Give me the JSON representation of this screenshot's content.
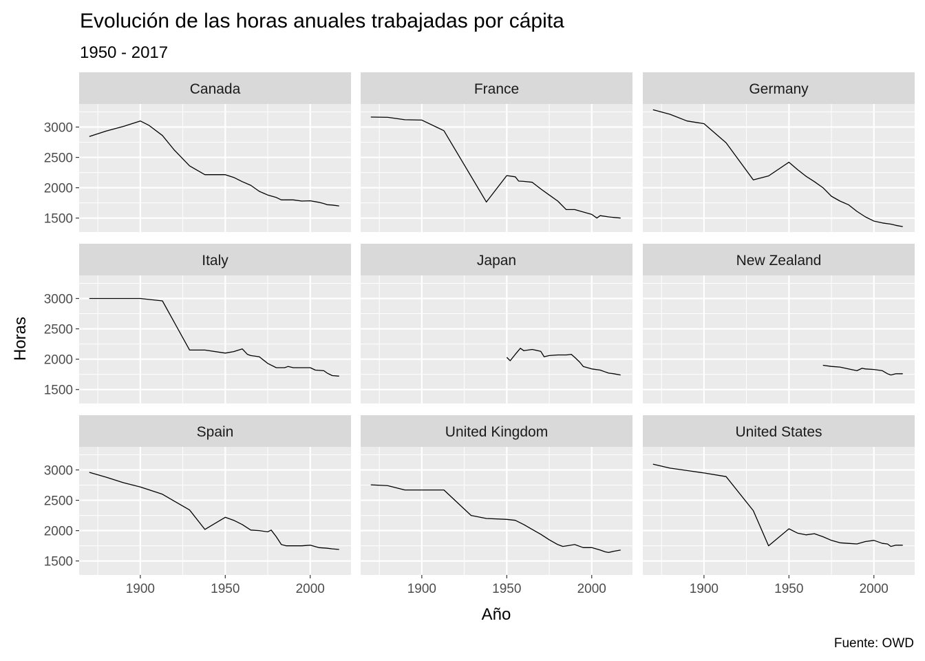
{
  "chart_data": {
    "type": "line",
    "title": "Evolución de las horas anuales trabajadas por cápita",
    "subtitle": "1950 - 2017",
    "xlabel": "Año",
    "ylabel": "Horas",
    "caption": "Fuente: OWD",
    "xlim": [
      1864,
      2024
    ],
    "ylim": [
      1270,
      3380
    ],
    "x_ticks": [
      1900,
      1950,
      2000
    ],
    "y_ticks": [
      1500,
      2000,
      2500,
      3000
    ],
    "grid": true,
    "legend": "none",
    "line_color": "#000000",
    "panel_color": "#ebebeb",
    "strip_color": "#d9d9d9",
    "grid_color": "#ffffff",
    "panels": [
      {
        "name": "Canada",
        "points": [
          [
            1870,
            2845
          ],
          [
            1880,
            2935
          ],
          [
            1890,
            3010
          ],
          [
            1900,
            3100
          ],
          [
            1905,
            3030
          ],
          [
            1913,
            2860
          ],
          [
            1920,
            2620
          ],
          [
            1929,
            2360
          ],
          [
            1938,
            2215
          ],
          [
            1950,
            2215
          ],
          [
            1955,
            2170
          ],
          [
            1960,
            2100
          ],
          [
            1965,
            2040
          ],
          [
            1970,
            1940
          ],
          [
            1975,
            1880
          ],
          [
            1980,
            1840
          ],
          [
            1983,
            1800
          ],
          [
            1990,
            1800
          ],
          [
            1995,
            1780
          ],
          [
            2000,
            1785
          ],
          [
            2005,
            1760
          ],
          [
            2008,
            1740
          ],
          [
            2010,
            1720
          ],
          [
            2013,
            1715
          ],
          [
            2017,
            1700
          ]
        ]
      },
      {
        "name": "France",
        "points": [
          [
            1870,
            3165
          ],
          [
            1880,
            3160
          ],
          [
            1890,
            3120
          ],
          [
            1900,
            3115
          ],
          [
            1913,
            2940
          ],
          [
            1938,
            1765
          ],
          [
            1950,
            2200
          ],
          [
            1955,
            2180
          ],
          [
            1957,
            2110
          ],
          [
            1960,
            2105
          ],
          [
            1965,
            2090
          ],
          [
            1970,
            1980
          ],
          [
            1975,
            1880
          ],
          [
            1980,
            1780
          ],
          [
            1985,
            1640
          ],
          [
            1990,
            1640
          ],
          [
            1995,
            1600
          ],
          [
            2000,
            1560
          ],
          [
            2003,
            1500
          ],
          [
            2005,
            1540
          ],
          [
            2010,
            1520
          ],
          [
            2013,
            1510
          ],
          [
            2017,
            1500
          ]
        ]
      },
      {
        "name": "Germany",
        "points": [
          [
            1870,
            3285
          ],
          [
            1880,
            3210
          ],
          [
            1890,
            3100
          ],
          [
            1900,
            3055
          ],
          [
            1913,
            2740
          ],
          [
            1929,
            2130
          ],
          [
            1938,
            2195
          ],
          [
            1950,
            2420
          ],
          [
            1955,
            2300
          ],
          [
            1960,
            2190
          ],
          [
            1965,
            2100
          ],
          [
            1970,
            2000
          ],
          [
            1975,
            1860
          ],
          [
            1980,
            1780
          ],
          [
            1985,
            1720
          ],
          [
            1990,
            1610
          ],
          [
            1995,
            1520
          ],
          [
            2000,
            1450
          ],
          [
            2005,
            1420
          ],
          [
            2010,
            1400
          ],
          [
            2013,
            1380
          ],
          [
            2017,
            1360
          ]
        ]
      },
      {
        "name": "Italy",
        "points": [
          [
            1870,
            3000
          ],
          [
            1880,
            3000
          ],
          [
            1890,
            3000
          ],
          [
            1900,
            3000
          ],
          [
            1913,
            2960
          ],
          [
            1929,
            2150
          ],
          [
            1938,
            2150
          ],
          [
            1950,
            2100
          ],
          [
            1955,
            2125
          ],
          [
            1960,
            2170
          ],
          [
            1963,
            2080
          ],
          [
            1965,
            2060
          ],
          [
            1970,
            2040
          ],
          [
            1975,
            1930
          ],
          [
            1980,
            1860
          ],
          [
            1985,
            1860
          ],
          [
            1987,
            1880
          ],
          [
            1990,
            1860
          ],
          [
            1995,
            1860
          ],
          [
            2000,
            1860
          ],
          [
            2003,
            1820
          ],
          [
            2008,
            1810
          ],
          [
            2010,
            1770
          ],
          [
            2013,
            1730
          ],
          [
            2017,
            1720
          ]
        ]
      },
      {
        "name": "Japan",
        "points": [
          [
            1950,
            2030
          ],
          [
            1952,
            1975
          ],
          [
            1955,
            2080
          ],
          [
            1958,
            2180
          ],
          [
            1960,
            2140
          ],
          [
            1965,
            2160
          ],
          [
            1970,
            2130
          ],
          [
            1972,
            2040
          ],
          [
            1975,
            2060
          ],
          [
            1980,
            2070
          ],
          [
            1985,
            2070
          ],
          [
            1988,
            2080
          ],
          [
            1990,
            2030
          ],
          [
            1993,
            1950
          ],
          [
            1995,
            1880
          ],
          [
            2000,
            1840
          ],
          [
            2005,
            1820
          ],
          [
            2008,
            1790
          ],
          [
            2010,
            1770
          ],
          [
            2013,
            1760
          ],
          [
            2017,
            1740
          ]
        ]
      },
      {
        "name": "New Zealand",
        "points": [
          [
            1970,
            1900
          ],
          [
            1975,
            1880
          ],
          [
            1980,
            1870
          ],
          [
            1985,
            1840
          ],
          [
            1990,
            1810
          ],
          [
            1993,
            1850
          ],
          [
            1995,
            1840
          ],
          [
            2000,
            1830
          ],
          [
            2005,
            1810
          ],
          [
            2008,
            1760
          ],
          [
            2010,
            1740
          ],
          [
            2013,
            1760
          ],
          [
            2017,
            1760
          ]
        ]
      },
      {
        "name": "Spain",
        "points": [
          [
            1870,
            2960
          ],
          [
            1880,
            2880
          ],
          [
            1890,
            2790
          ],
          [
            1900,
            2720
          ],
          [
            1913,
            2600
          ],
          [
            1929,
            2340
          ],
          [
            1938,
            2020
          ],
          [
            1950,
            2220
          ],
          [
            1955,
            2170
          ],
          [
            1960,
            2100
          ],
          [
            1965,
            2010
          ],
          [
            1970,
            2000
          ],
          [
            1975,
            1980
          ],
          [
            1977,
            2010
          ],
          [
            1980,
            1900
          ],
          [
            1983,
            1770
          ],
          [
            1986,
            1750
          ],
          [
            1990,
            1750
          ],
          [
            1995,
            1750
          ],
          [
            2000,
            1760
          ],
          [
            2005,
            1720
          ],
          [
            2010,
            1710
          ],
          [
            2013,
            1700
          ],
          [
            2017,
            1690
          ]
        ]
      },
      {
        "name": "United Kingdom",
        "points": [
          [
            1870,
            2755
          ],
          [
            1880,
            2740
          ],
          [
            1890,
            2670
          ],
          [
            1900,
            2670
          ],
          [
            1913,
            2670
          ],
          [
            1929,
            2250
          ],
          [
            1938,
            2200
          ],
          [
            1950,
            2185
          ],
          [
            1955,
            2170
          ],
          [
            1960,
            2100
          ],
          [
            1965,
            2020
          ],
          [
            1970,
            1940
          ],
          [
            1975,
            1850
          ],
          [
            1980,
            1770
          ],
          [
            1983,
            1740
          ],
          [
            1990,
            1770
          ],
          [
            1995,
            1720
          ],
          [
            2000,
            1720
          ],
          [
            2005,
            1680
          ],
          [
            2008,
            1650
          ],
          [
            2010,
            1640
          ],
          [
            2013,
            1660
          ],
          [
            2017,
            1680
          ]
        ]
      },
      {
        "name": "United States",
        "points": [
          [
            1870,
            3095
          ],
          [
            1880,
            3030
          ],
          [
            1890,
            2990
          ],
          [
            1900,
            2950
          ],
          [
            1913,
            2890
          ],
          [
            1929,
            2330
          ],
          [
            1938,
            1750
          ],
          [
            1950,
            2030
          ],
          [
            1955,
            1960
          ],
          [
            1960,
            1930
          ],
          [
            1965,
            1950
          ],
          [
            1970,
            1900
          ],
          [
            1975,
            1840
          ],
          [
            1980,
            1800
          ],
          [
            1985,
            1790
          ],
          [
            1990,
            1780
          ],
          [
            1995,
            1820
          ],
          [
            2000,
            1840
          ],
          [
            2005,
            1790
          ],
          [
            2008,
            1780
          ],
          [
            2010,
            1740
          ],
          [
            2013,
            1760
          ],
          [
            2017,
            1760
          ]
        ]
      }
    ]
  }
}
